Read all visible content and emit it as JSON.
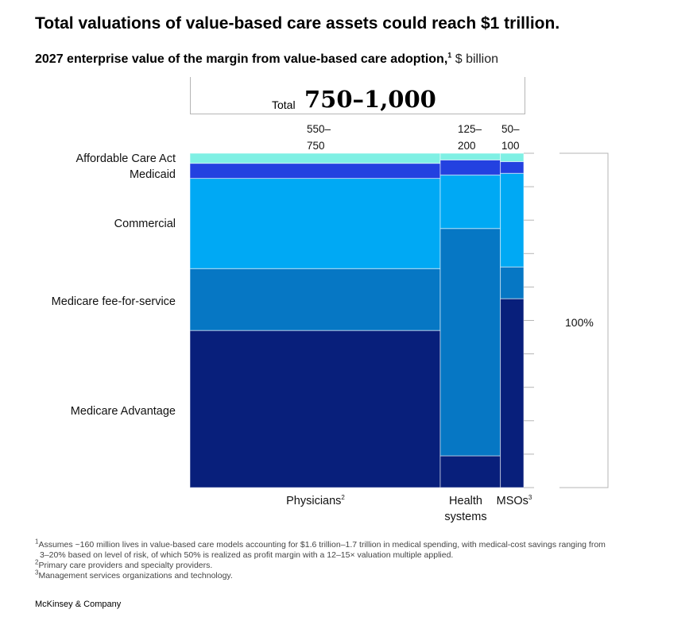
{
  "title": "Total valuations of value-based care assets could reach $1 trillion.",
  "subtitle": {
    "main": "2027 enterprise value of the margin from value-based care adoption,",
    "footnote_ref": "1",
    "unit": "$ billion"
  },
  "total": {
    "label": "Total",
    "value": "750–1,000"
  },
  "chart_data": {
    "type": "marimekko",
    "title": "2027 enterprise value of the margin from value-based care adoption",
    "unit": "$ billion",
    "total_range": "750–1,000",
    "segments": [
      "Medicare Advantage",
      "Medicare fee-for-service",
      "Commercial",
      "Medicaid",
      "Affordable Care Act"
    ],
    "segment_colors": [
      "#081f7b",
      "#0677c4",
      "#00a9f4",
      "#2341e0",
      "#7ff0e4"
    ],
    "columns": [
      {
        "name": "Physicians",
        "footnote_ref": "2",
        "range_line1": "550–",
        "range_line2": "750",
        "width_share": 0.75,
        "shares": [
          0.47,
          0.185,
          0.27,
          0.045,
          0.03
        ]
      },
      {
        "name": "Health systems",
        "name_line1": "Health",
        "name_line2": "systems",
        "footnote_ref": "",
        "range_line1": "125–",
        "range_line2": "200",
        "width_share": 0.18,
        "shares": [
          0.095,
          0.68,
          0.16,
          0.045,
          0.02
        ]
      },
      {
        "name": "MSOs",
        "footnote_ref": "3",
        "range_line1": "50–",
        "range_line2": "100",
        "width_share": 0.07,
        "shares": [
          0.565,
          0.095,
          0.28,
          0.035,
          0.025
        ]
      }
    ],
    "scale_label": "100%",
    "scale_ticks": 10
  },
  "row_labels": {
    "aca": "Affordable Care Act",
    "medicaid": "Medicaid",
    "commercial": "Commercial",
    "ffs": "Medicare fee-for-service",
    "ma": "Medicare Advantage"
  },
  "footnotes": {
    "f1_ref": "1",
    "f1_line1": "Assumes ~160 million lives in value-based care models accounting for $1.6 trillion–1.7 trillion in medical spending, with medical-cost savings ranging from",
    "f1_line2": "3–20% based on level of risk, of which 50% is realized as profit margin with a 12–15× valuation multiple applied.",
    "f2_ref": "2",
    "f2": "Primary care providers and specialty providers.",
    "f3_ref": "3",
    "f3": "Management services organizations and technology."
  },
  "source": "McKinsey & Company"
}
